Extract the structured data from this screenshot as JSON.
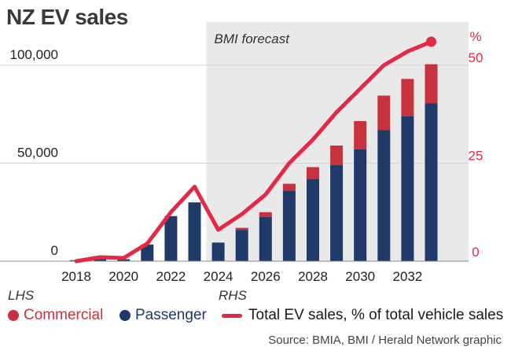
{
  "title": "NZ EV sales",
  "forecast_label": "BMI forecast",
  "lhs_label": "LHS",
  "rhs_label": "RHS",
  "legend": {
    "commercial": "Commercial",
    "passenger": "Passenger",
    "line": "Total EV sales, % of total vehicle sales"
  },
  "source": "Source: BMIA, BMI / Herald Network graphic",
  "colors": {
    "commercial": "#c8323c",
    "passenger": "#1f3a68",
    "line": "#e32945",
    "forecast_shade": "#e9e9e9"
  },
  "chart_data": {
    "type": "bar",
    "stacked": true,
    "years": [
      2018,
      2019,
      2020,
      2021,
      2022,
      2023,
      2024,
      2025,
      2026,
      2027,
      2028,
      2029,
      2030,
      2031,
      2032,
      2033
    ],
    "x_tick_labels": [
      "2018",
      "2020",
      "2022",
      "2024",
      "2026",
      "2028",
      "2030",
      "2032"
    ],
    "forecast_start": 2023.5,
    "left_axis": {
      "ylim": [
        0,
        110000
      ],
      "ticks": [
        0,
        50000,
        100000
      ],
      "tick_labels": [
        "0",
        "50,000",
        "100,000"
      ]
    },
    "right_axis": {
      "ylim": [
        0,
        55
      ],
      "ticks": [
        0,
        25,
        50
      ],
      "tick_labels": [
        "0",
        "25",
        "50"
      ],
      "unit_label": "%"
    },
    "series": [
      {
        "name": "Passenger",
        "values": [
          500,
          1000,
          1000,
          8500,
          23000,
          30000,
          9500,
          16000,
          22500,
          36000,
          42000,
          49000,
          57000,
          67000,
          74000,
          80500
        ]
      },
      {
        "name": "Commercial",
        "values": [
          0,
          0,
          0,
          0,
          0,
          0,
          0,
          1000,
          2500,
          3500,
          6000,
          10000,
          14500,
          17500,
          19000,
          20000
        ]
      },
      {
        "name": "Total EV sales, % of total vehicle sales",
        "axis": "right",
        "type": "line",
        "values": [
          0,
          1,
          0.8,
          4.5,
          12.5,
          19,
          8,
          12,
          17,
          25,
          31,
          38,
          44,
          50,
          53.5,
          56
        ]
      }
    ]
  }
}
